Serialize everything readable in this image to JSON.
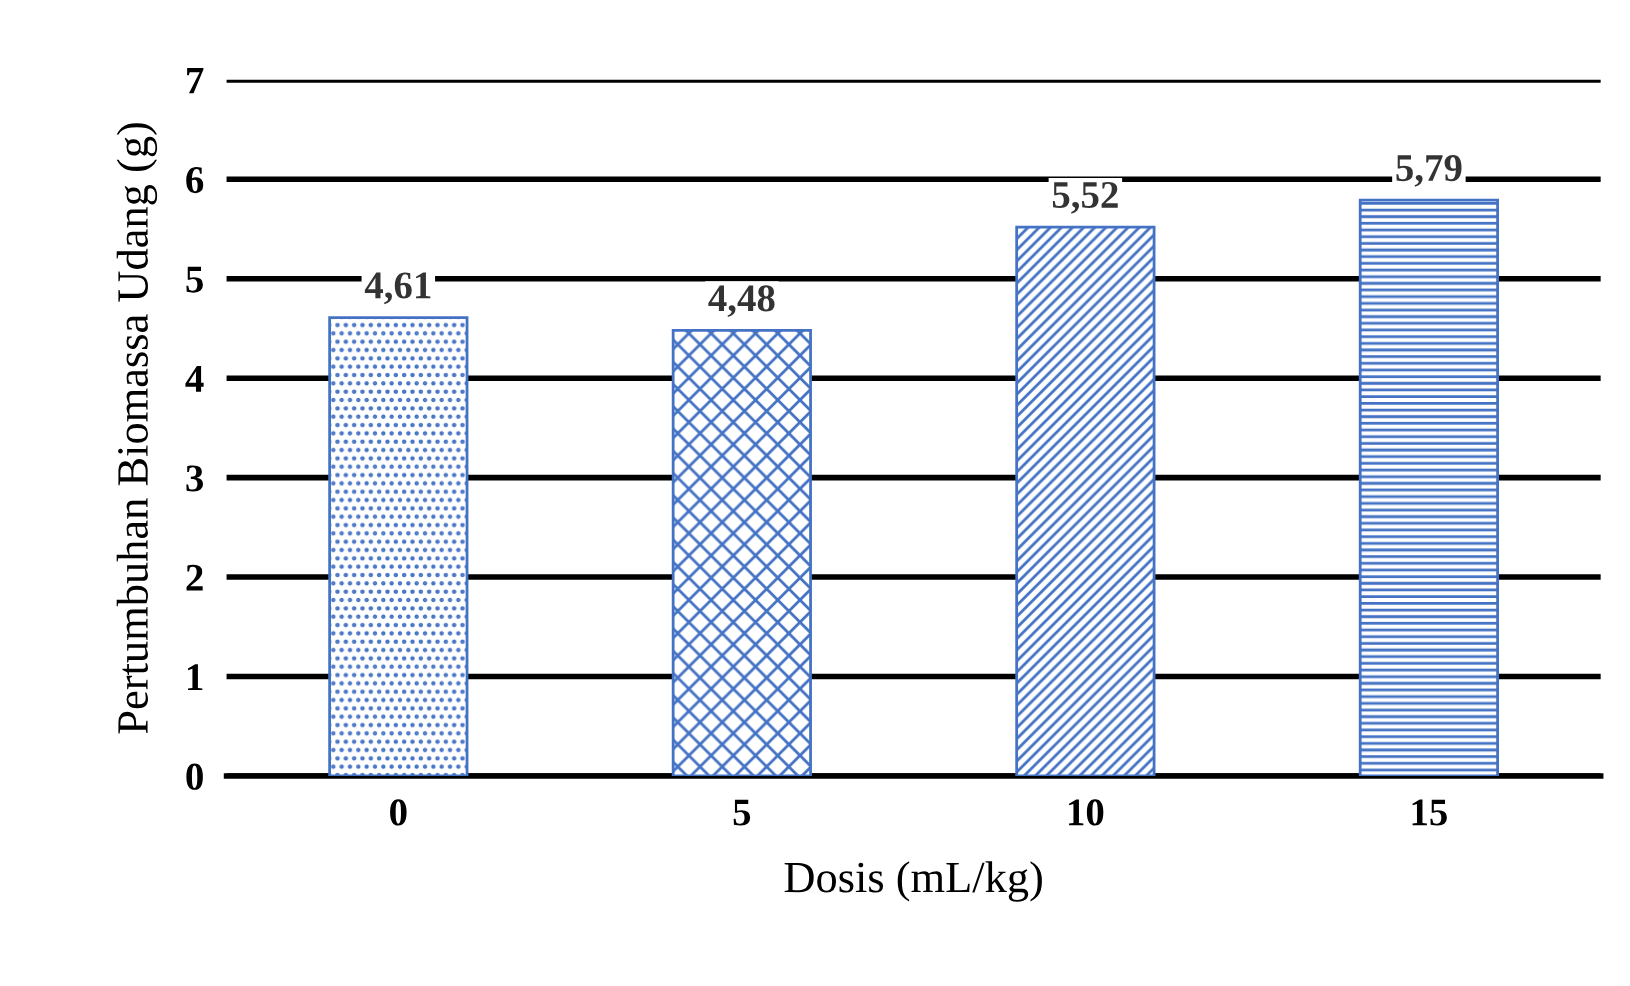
{
  "chart_data": {
    "type": "bar",
    "categories": [
      "0",
      "5",
      "10",
      "15"
    ],
    "values": [
      4.61,
      4.48,
      5.52,
      5.79
    ],
    "value_labels": [
      "4,61",
      "4,48",
      "5,52",
      "5,79"
    ],
    "color": "#4472c4",
    "xlabel": "Dosis (mL/kg)",
    "ylabel": "Pertumbuhan Biomassa Udang (g)",
    "ylim": [
      0,
      7
    ],
    "yticks": [
      0,
      1,
      2,
      3,
      4,
      5,
      6,
      7
    ],
    "grid": "y",
    "legend": false
  }
}
